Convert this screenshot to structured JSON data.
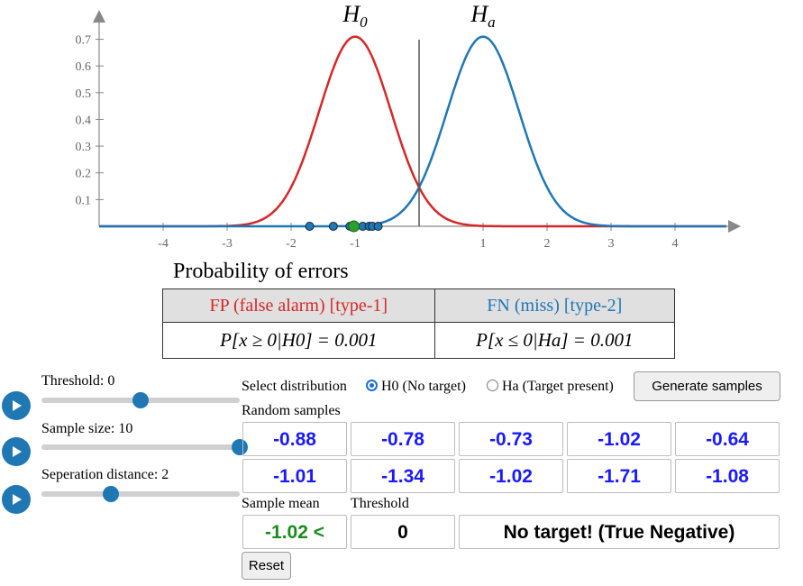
{
  "plot": {
    "h0_label": "H0",
    "ha_label": "Ha",
    "y_ticks": [
      "0.1",
      "0.2",
      "0.3",
      "0.4",
      "0.5",
      "0.6",
      "0.7"
    ],
    "x_ticks": [
      "-4",
      "-3",
      "-2",
      "-1",
      "1",
      "2",
      "3",
      "4"
    ],
    "h0_mean": -1,
    "ha_mean": 1,
    "std": 0.5623,
    "threshold": 0,
    "sample_points": [
      -0.88,
      -0.78,
      -0.73,
      -1.02,
      -0.64,
      -1.01,
      -1.34,
      -1.02,
      -1.71,
      -1.08
    ],
    "sample_mean_point": -1.02,
    "colors": {
      "h0": "#d62728",
      "ha": "#1f77b4",
      "mean": "#2ca02c"
    }
  },
  "errors": {
    "title": "Probability of errors",
    "fp_header": "FP (false alarm) [type-1]",
    "fn_header": "FN (miss) [type-2]",
    "fp_formula": "P[x ≥ 0|H0] = 0.001",
    "fn_formula": "P[x ≤ 0|Ha] = 0.001"
  },
  "controls": {
    "threshold_label": "Threshold: 0",
    "threshold_fraction": 0.5,
    "sample_size_label": "Sample size: 10",
    "sample_size_fraction": 1.0,
    "separation_label": "Seperation distance: 2",
    "separation_fraction": 0.35
  },
  "distribution": {
    "label": "Select distribution",
    "option_h0": "H0 (No target)",
    "option_ha": "Ha (Target present)",
    "selected": "H0",
    "generate_button": "Generate samples"
  },
  "samples": {
    "label": "Random samples",
    "row1": [
      "-0.88",
      "-0.78",
      "-0.73",
      "-1.02",
      "-0.64"
    ],
    "row2": [
      "-1.01",
      "-1.34",
      "-1.02",
      "-1.71",
      "-1.08"
    ]
  },
  "result": {
    "mean_label": "Sample mean",
    "threshold_label": "Threshold",
    "mean_value": "-1.02 <",
    "threshold_value": "0",
    "verdict": "No target! (True Negative)",
    "reset_button": "Reset"
  }
}
